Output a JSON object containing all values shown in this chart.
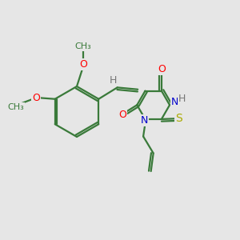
{
  "background_color": "#e6e6e6",
  "bond_color": "#3a7a3a",
  "atom_colors": {
    "O": "#ff0000",
    "N": "#0000cc",
    "S": "#aaaa00",
    "H": "#777777",
    "C": "#3a7a3a"
  },
  "figsize": [
    3.0,
    3.0
  ],
  "dpi": 100
}
